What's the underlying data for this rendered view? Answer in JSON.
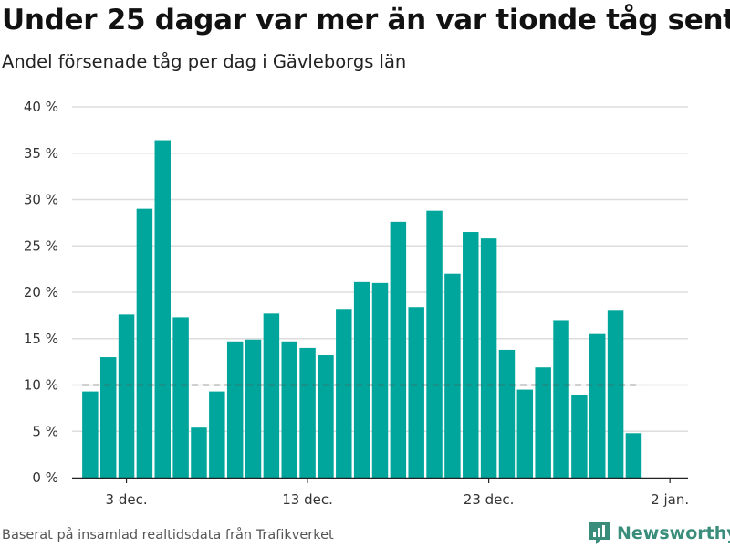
{
  "chart_data": {
    "type": "bar",
    "title": "Under 25 dagar var mer än var tionde tåg sent",
    "subtitle": "Andel försenade tåg per dag i Gävleborgs län",
    "x": [
      "2024-12-01",
      "2024-12-02",
      "2024-12-03",
      "2024-12-04",
      "2024-12-05",
      "2024-12-06",
      "2024-12-07",
      "2024-12-08",
      "2024-12-09",
      "2024-12-10",
      "2024-12-11",
      "2024-12-12",
      "2024-12-13",
      "2024-12-14",
      "2024-12-15",
      "2024-12-16",
      "2024-12-17",
      "2024-12-18",
      "2024-12-19",
      "2024-12-20",
      "2024-12-21",
      "2024-12-22",
      "2024-12-23",
      "2024-12-24",
      "2024-12-25",
      "2024-12-26",
      "2024-12-27",
      "2024-12-28",
      "2024-12-29",
      "2024-12-30",
      "2024-12-31"
    ],
    "values": [
      9.3,
      13.0,
      17.6,
      29.0,
      36.4,
      17.3,
      5.4,
      9.3,
      14.7,
      14.9,
      17.7,
      14.7,
      14.0,
      13.2,
      18.2,
      21.1,
      21.0,
      27.6,
      18.4,
      28.8,
      22.0,
      26.5,
      25.8,
      13.8,
      9.5,
      11.9,
      17.0,
      8.9,
      15.5,
      18.1,
      4.8
    ],
    "reference_line": 10,
    "ylim": [
      0,
      40
    ],
    "yticks": [
      "0 %",
      "5 %",
      "10 %",
      "15 %",
      "20 %",
      "25 %",
      "30 %",
      "35 %",
      "40 %"
    ],
    "xticks": [
      {
        "date": "2024-12-03",
        "label": "3 dec."
      },
      {
        "date": "2024-12-13",
        "label": "13 dec."
      },
      {
        "date": "2024-12-23",
        "label": "23 dec."
      },
      {
        "date": "2025-01-02",
        "label": "2 jan."
      }
    ],
    "xlabel": "",
    "ylabel": "",
    "grid": true,
    "colors": {
      "bar": "#00a69c",
      "grid": "#dddddd",
      "reference": "#555555"
    }
  },
  "footer": {
    "source": "Baserat på insamlad realtidsdata från Trafikverket",
    "brand": "Newsworthy",
    "logo_icon": "bar-chart-badge-icon"
  }
}
